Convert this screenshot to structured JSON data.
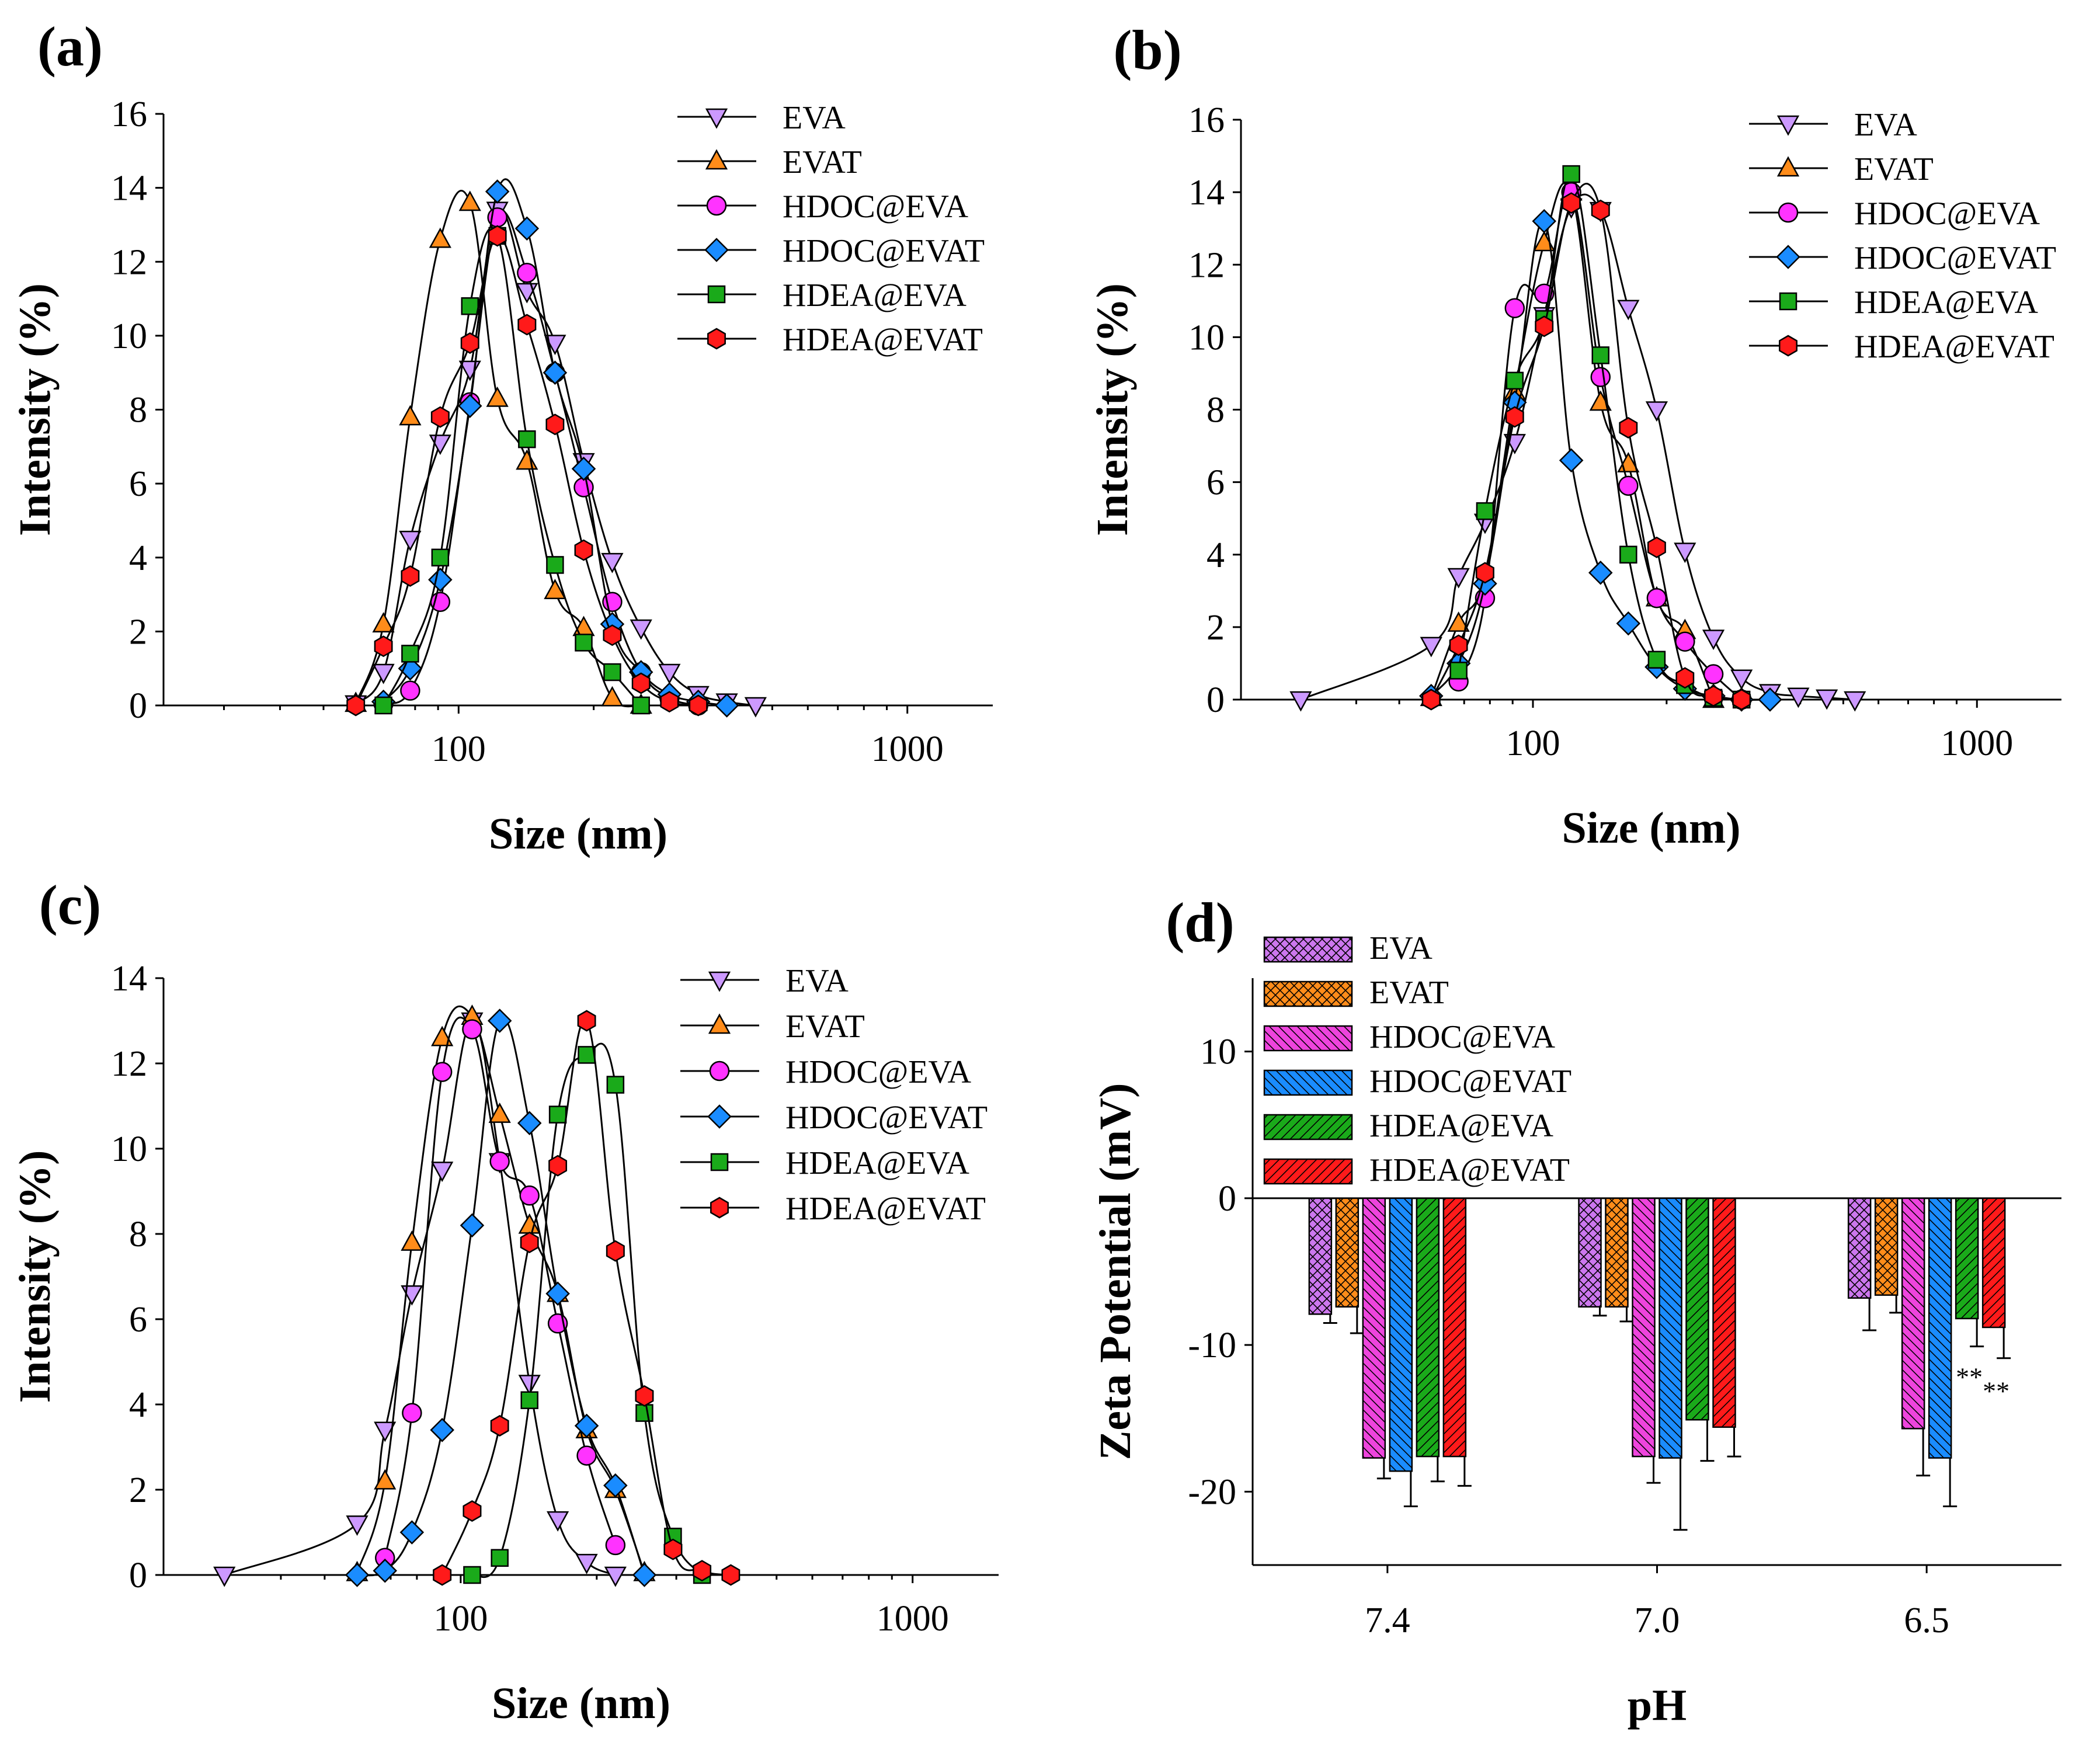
{
  "chart_data": [
    {
      "panel": "(a)",
      "type": "line",
      "x_scale": "log",
      "xlabel": "Size (nm)",
      "ylabel": "Intensity (%)",
      "xlim": [
        22,
        1550
      ],
      "ylim": [
        0,
        16
      ],
      "yticks": [
        0,
        2,
        4,
        6,
        8,
        10,
        12,
        14,
        16
      ],
      "xticks": [
        100,
        1000
      ],
      "legend_position": "top-right",
      "series": [
        {
          "name": "EVA",
          "marker": "triangle-down",
          "color": "#cc99ff",
          "x": [
            59,
            68,
            78,
            91,
            106,
            122,
            142,
            164,
            190,
            220,
            255,
            295,
            342,
            396,
            459
          ],
          "y": [
            0.05,
            0.9,
            4.5,
            7.1,
            9.1,
            13.4,
            11.2,
            9.8,
            6.6,
            3.9,
            2.1,
            0.9,
            0.3,
            0.1,
            0.0
          ]
        },
        {
          "name": "EVAT",
          "marker": "triangle-up",
          "color": "#ff8c1a",
          "x": [
            59,
            68,
            78,
            91,
            106,
            122,
            142,
            164,
            190,
            220,
            255
          ],
          "y": [
            0.05,
            2.2,
            7.8,
            12.6,
            13.6,
            8.3,
            6.6,
            3.1,
            2.1,
            0.2,
            0.0
          ]
        },
        {
          "name": "HDOC@EVA",
          "marker": "circle",
          "color": "#ff33ff",
          "x": [
            68,
            78,
            91,
            106,
            122,
            142,
            164,
            190,
            220,
            255,
            295,
            342
          ],
          "y": [
            0.05,
            0.4,
            2.8,
            8.2,
            13.2,
            11.7,
            9.0,
            5.9,
            2.8,
            0.9,
            0.2,
            0.0
          ]
        },
        {
          "name": "HDOC@EVAT",
          "marker": "diamond",
          "color": "#1a8cff",
          "x": [
            68,
            78,
            91,
            106,
            122,
            142,
            164,
            190,
            220,
            255,
            295,
            342,
            396
          ],
          "y": [
            0.1,
            1.0,
            3.4,
            8.1,
            13.9,
            12.9,
            9.0,
            6.4,
            2.2,
            0.9,
            0.3,
            0.1,
            0.0
          ]
        },
        {
          "name": "HDEA@EVA",
          "marker": "square",
          "color": "#1aaa1a",
          "x": [
            68,
            78,
            91,
            106,
            122,
            142,
            164,
            190,
            220,
            255
          ],
          "y": [
            0.0,
            1.4,
            4.0,
            10.8,
            12.7,
            7.2,
            3.8,
            1.7,
            0.9,
            0.0
          ]
        },
        {
          "name": "HDEA@EVAT",
          "marker": "hexagon",
          "color": "#ff1a1a",
          "x": [
            59,
            68,
            78,
            91,
            106,
            122,
            142,
            164,
            190,
            220,
            255,
            295,
            342
          ],
          "y": [
            0.0,
            1.6,
            3.5,
            7.8,
            9.8,
            12.7,
            10.3,
            7.6,
            4.2,
            1.9,
            0.6,
            0.1,
            0.0
          ]
        }
      ]
    },
    {
      "panel": "(b)",
      "type": "line",
      "x_scale": "log",
      "xlabel": "Size (nm)",
      "ylabel": "Intensity (%)",
      "xlim": [
        22,
        1550
      ],
      "ylim": [
        0,
        16
      ],
      "yticks": [
        0,
        2,
        4,
        6,
        8,
        10,
        12,
        14,
        16
      ],
      "xticks": [
        100,
        1000
      ],
      "legend_position": "top-right",
      "series": [
        {
          "name": "EVA",
          "marker": "triangle-down",
          "color": "#cc99ff",
          "x": [
            30,
            59,
            68,
            78,
            91,
            106,
            122,
            142,
            164,
            190,
            220,
            255,
            295,
            342,
            396,
            459,
            531
          ],
          "y": [
            0.0,
            1.5,
            3.4,
            4.9,
            7.1,
            10.6,
            13.6,
            13.5,
            10.8,
            8.0,
            4.1,
            1.7,
            0.6,
            0.2,
            0.1,
            0.05,
            0.0
          ]
        },
        {
          "name": "EVAT",
          "marker": "triangle-up",
          "color": "#ff8c1a",
          "x": [
            59,
            68,
            78,
            91,
            106,
            122,
            142,
            164,
            190,
            220,
            255
          ],
          "y": [
            0.05,
            2.1,
            3.4,
            8.5,
            12.6,
            14.0,
            8.2,
            6.5,
            2.8,
            1.9,
            0.0
          ]
        },
        {
          "name": "HDOC@EVA",
          "marker": "circle",
          "color": "#ff33ff",
          "x": [
            68,
            78,
            91,
            106,
            122,
            142,
            164,
            190,
            220,
            255,
            295
          ],
          "y": [
            0.5,
            2.8,
            10.8,
            11.2,
            14.0,
            8.9,
            5.9,
            2.8,
            1.6,
            0.7,
            0.0
          ]
        },
        {
          "name": "HDOC@EVAT",
          "marker": "diamond",
          "color": "#1a8cff",
          "x": [
            59,
            68,
            78,
            91,
            106,
            122,
            142,
            164,
            190,
            220,
            255,
            295,
            342
          ],
          "y": [
            0.1,
            1.0,
            3.2,
            8.2,
            13.2,
            6.6,
            3.5,
            2.1,
            0.9,
            0.3,
            0.1,
            0.0,
            0.0
          ]
        },
        {
          "name": "HDEA@EVA",
          "marker": "square",
          "color": "#1aaa1a",
          "x": [
            68,
            78,
            91,
            106,
            122,
            142,
            164,
            190,
            220,
            255,
            295
          ],
          "y": [
            0.8,
            5.2,
            8.8,
            10.5,
            14.5,
            9.5,
            4.0,
            1.1,
            0.4,
            0.05,
            0.0
          ]
        },
        {
          "name": "HDEA@EVAT",
          "marker": "hexagon",
          "color": "#ff1a1a",
          "x": [
            59,
            68,
            78,
            91,
            106,
            122,
            142,
            164,
            190,
            220,
            255,
            295
          ],
          "y": [
            0.0,
            1.5,
            3.5,
            7.8,
            10.3,
            13.7,
            13.5,
            7.5,
            4.2,
            0.6,
            0.1,
            0.0
          ]
        }
      ]
    },
    {
      "panel": "(c)",
      "type": "line",
      "x_scale": "log",
      "xlabel": "Size (nm)",
      "ylabel": "Intensity (%)",
      "xlim": [
        22,
        1550
      ],
      "ylim": [
        0,
        14
      ],
      "yticks": [
        0,
        2,
        4,
        6,
        8,
        10,
        12,
        14
      ],
      "xticks": [
        100,
        1000
      ],
      "legend_position": "top-right",
      "series": [
        {
          "name": "EVA",
          "marker": "triangle-down",
          "color": "#cc99ff",
          "x": [
            30,
            59,
            68,
            78,
            91,
            106,
            122,
            142,
            164,
            190,
            220
          ],
          "y": [
            0.0,
            1.2,
            3.4,
            6.6,
            9.5,
            13.0,
            9.7,
            4.5,
            1.3,
            0.3,
            0.0
          ]
        },
        {
          "name": "EVAT",
          "marker": "triangle-up",
          "color": "#ff8c1a",
          "x": [
            59,
            68,
            78,
            91,
            106,
            122,
            142,
            164,
            190,
            220,
            255
          ],
          "y": [
            0.05,
            2.2,
            7.8,
            12.6,
            13.1,
            10.8,
            8.2,
            6.6,
            3.4,
            2.0,
            0.05
          ]
        },
        {
          "name": "HDOC@EVA",
          "marker": "circle",
          "color": "#ff33ff",
          "x": [
            68,
            78,
            91,
            106,
            122,
            142,
            164,
            190,
            220
          ],
          "y": [
            0.4,
            3.8,
            11.8,
            12.8,
            9.7,
            8.9,
            5.9,
            2.8,
            0.7
          ]
        },
        {
          "name": "HDOC@EVAT",
          "marker": "diamond",
          "color": "#1a8cff",
          "x": [
            59,
            68,
            78,
            91,
            106,
            122,
            142,
            164,
            190,
            220,
            255
          ],
          "y": [
            0.0,
            0.1,
            1.0,
            3.4,
            8.2,
            13.0,
            10.6,
            6.6,
            3.5,
            2.1,
            0.0
          ]
        },
        {
          "name": "HDEA@EVA",
          "marker": "square",
          "color": "#1aaa1a",
          "x": [
            106,
            122,
            142,
            164,
            190,
            220,
            255,
            295,
            342
          ],
          "y": [
            0.0,
            0.4,
            4.1,
            10.8,
            12.2,
            11.5,
            3.8,
            0.9,
            0.0
          ]
        },
        {
          "name": "HDEA@EVAT",
          "marker": "hexagon",
          "color": "#ff1a1a",
          "x": [
            91,
            106,
            122,
            142,
            164,
            190,
            220,
            255,
            295,
            342,
            396
          ],
          "y": [
            0.0,
            1.5,
            3.5,
            7.8,
            9.6,
            13.0,
            7.6,
            4.2,
            0.6,
            0.1,
            0.0
          ]
        }
      ]
    },
    {
      "panel": "(d)",
      "type": "bar",
      "xlabel": "pH",
      "ylabel": "Zeta Potential (mV)",
      "categories": [
        "7.4",
        "7.0",
        "6.5"
      ],
      "ylim": [
        -25,
        15
      ],
      "yticks": [
        -20,
        -10,
        0,
        10
      ],
      "legend_position": "top-left",
      "series": [
        {
          "name": "EVA",
          "color": "#cc77ee",
          "pattern": "crosshatch",
          "values": [
            -7.9,
            -7.4,
            -6.8
          ],
          "errors": [
            0.6,
            0.6,
            2.2
          ]
        },
        {
          "name": "EVAT",
          "color": "#ff8c1a",
          "pattern": "crosshatch",
          "values": [
            -7.4,
            -7.4,
            -6.6
          ],
          "errors": [
            1.8,
            1.0,
            1.2
          ]
        },
        {
          "name": "HDOC@EVA",
          "color": "#ee44dd",
          "pattern": "back-diagonal",
          "values": [
            -17.7,
            -17.6,
            -15.7
          ],
          "errors": [
            1.4,
            1.8,
            3.2
          ]
        },
        {
          "name": "HDOC@EVAT",
          "color": "#1a8cff",
          "pattern": "back-diagonal",
          "values": [
            -18.6,
            -17.7,
            -17.7
          ],
          "errors": [
            2.4,
            4.9,
            3.3
          ]
        },
        {
          "name": "HDEA@EVA",
          "color": "#1aaa1a",
          "pattern": "diagonal",
          "values": [
            -17.6,
            -15.1,
            -8.2
          ],
          "errors": [
            1.7,
            2.8,
            1.9
          ]
        },
        {
          "name": "HDEA@EVAT",
          "color": "#ff1a1a",
          "pattern": "diagonal",
          "values": [
            -17.6,
            -15.6,
            -8.8
          ],
          "errors": [
            2.0,
            2.0,
            2.1
          ]
        }
      ],
      "annotations": [
        {
          "text": "**",
          "category": "6.5",
          "series": "HDEA@EVA"
        },
        {
          "text": "**",
          "category": "6.5",
          "series": "HDEA@EVAT"
        }
      ]
    }
  ]
}
